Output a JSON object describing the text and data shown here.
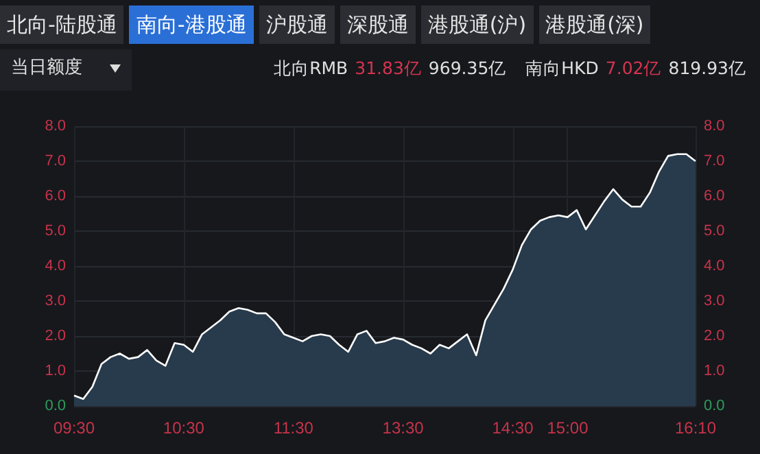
{
  "chart_data": {
    "type": "area",
    "annotations": [
      "北向-陆股通",
      "南向-港股通",
      "沪股通",
      "深股通",
      "港股通(沪)",
      "港股通(深)",
      "当日额度",
      "北向RMB",
      "31.83亿",
      "969.35亿",
      "南向HKD",
      "7.02亿",
      "819.93亿"
    ],
    "categories": [
      "09:30",
      null,
      null,
      null,
      null,
      null,
      null,
      null,
      null,
      null,
      null,
      null,
      "10:30",
      null,
      null,
      null,
      null,
      null,
      null,
      null,
      null,
      null,
      null,
      null,
      "11:30",
      null,
      null,
      null,
      null,
      null,
      null,
      null,
      null,
      null,
      null,
      null,
      "13:30",
      null,
      null,
      null,
      null,
      null,
      null,
      null,
      null,
      null,
      null,
      null,
      "14:30",
      null,
      null,
      null,
      null,
      null,
      "15:00",
      null,
      null,
      null,
      null,
      null,
      null,
      null,
      null,
      null,
      null,
      null,
      null,
      null,
      "16:10"
    ],
    "series": [
      {
        "color": "#ffffff",
        "values": [
          0.3,
          0.2,
          0.55,
          1.2,
          1.4,
          1.5,
          1.35,
          1.4,
          1.6,
          1.3,
          1.15,
          1.8,
          1.75,
          1.55,
          2.05,
          2.25,
          2.45,
          2.7,
          2.8,
          2.75,
          2.65,
          2.65,
          2.4,
          2.05,
          1.95,
          1.85,
          2.0,
          2.05,
          2.0,
          1.75,
          1.55,
          2.05,
          2.15,
          1.8,
          1.85,
          1.95,
          1.9,
          1.75,
          1.65,
          1.5,
          1.75,
          1.65,
          1.85,
          2.05,
          1.45,
          2.45,
          2.9,
          3.35,
          3.9,
          4.6,
          5.05,
          5.3,
          5.4,
          5.45,
          5.4,
          5.6,
          5.05,
          5.45,
          5.85,
          6.2,
          5.9,
          5.7,
          5.7,
          6.1,
          6.7,
          7.15,
          7.2,
          7.2,
          7.0
        ]
      }
    ],
    "ylim": [
      0,
      8
    ],
    "yticks": [
      {
        "value": 0,
        "label": "0.0"
      },
      {
        "value": 1,
        "label": "1.0"
      },
      {
        "value": 2,
        "label": "2.0"
      },
      {
        "value": 3,
        "label": "3.0"
      },
      {
        "value": 4,
        "label": "4.0"
      },
      {
        "value": 5,
        "label": "5.0"
      },
      {
        "value": 6,
        "label": "6.0"
      },
      {
        "value": 7,
        "label": "7.0"
      },
      {
        "value": 8,
        "label": "8.0"
      }
    ],
    "y2lim": [
      0,
      8
    ],
    "y2ticks": [
      {
        "value": 0,
        "label": "0.0"
      },
      {
        "value": 1,
        "label": "1.0"
      },
      {
        "value": 2,
        "label": "2.0"
      },
      {
        "value": 3,
        "label": "3.0"
      },
      {
        "value": 4,
        "label": "4.0"
      },
      {
        "value": 5,
        "label": "5.0"
      },
      {
        "value": 6,
        "label": "6.0"
      },
      {
        "value": 7,
        "label": "7.0"
      },
      {
        "value": 8,
        "label": "8.0"
      }
    ],
    "grid": true,
    "marker": "none",
    "line_style": "solid"
  }
}
